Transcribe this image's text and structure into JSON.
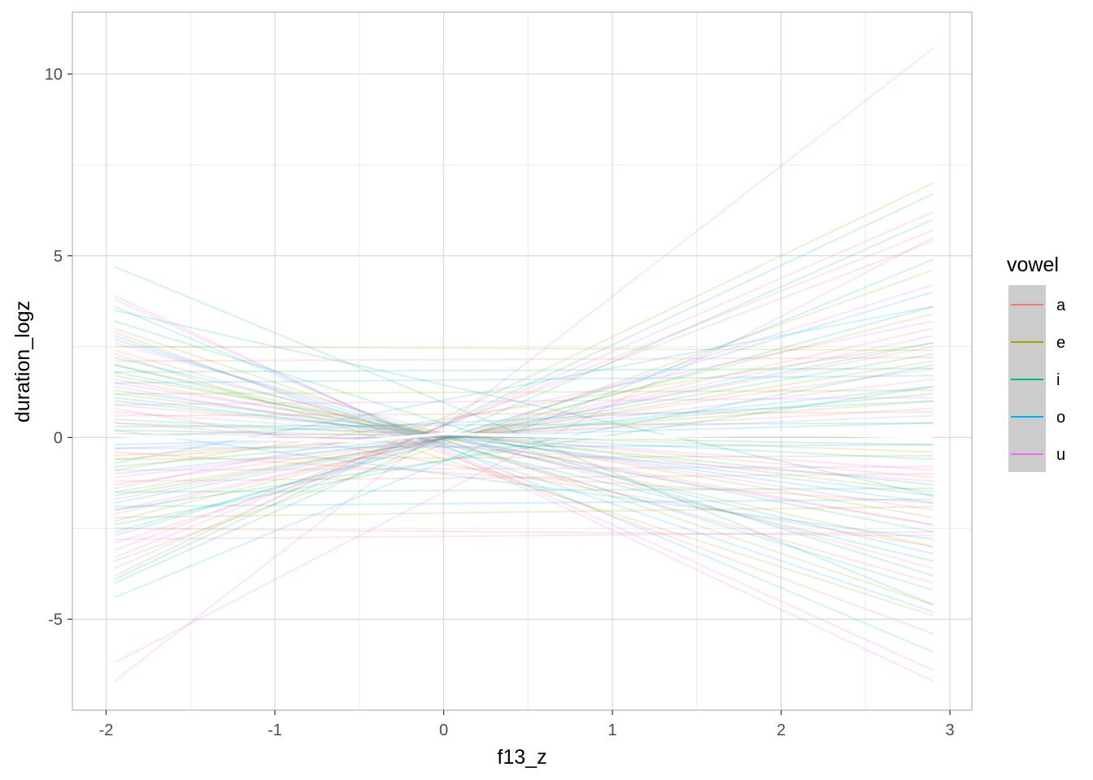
{
  "chart_data": {
    "type": "line",
    "title": "",
    "xlabel": "f13_z",
    "ylabel": "duration_logz",
    "xlim": [
      -2.2,
      3.13
    ],
    "ylim": [
      -7.5,
      11.7
    ],
    "x_ticks": [
      -2,
      -1,
      0,
      1,
      2,
      3
    ],
    "y_ticks": [
      -5,
      0,
      5,
      10
    ],
    "x_tick_labels": [
      "-2",
      "-1",
      "0",
      "1",
      "2",
      "3"
    ],
    "y_tick_labels": [
      "-5",
      "0",
      "5",
      "10"
    ],
    "grid": true,
    "legend_position": "right",
    "legend": {
      "title": "vowel",
      "entries": [
        {
          "name": "a",
          "color": "#F8766D"
        },
        {
          "name": "e",
          "color": "#A3A500"
        },
        {
          "name": "i",
          "color": "#00BF7D"
        },
        {
          "name": "o",
          "color": "#00B0F6"
        },
        {
          "name": "u",
          "color": "#E76BF3"
        }
      ]
    },
    "x_range": [
      -1.95,
      2.9
    ],
    "line_opacity": 0.18,
    "line_width": 2,
    "series": [
      {
        "vowel": "u",
        "y": [
          -6.7,
          10.7
        ]
      },
      {
        "vowel": "u",
        "y": [
          -6.2,
          5.5
        ]
      },
      {
        "vowel": "u",
        "y": [
          3.9,
          -6.7
        ]
      },
      {
        "vowel": "u",
        "y": [
          3.8,
          -6.4
        ]
      },
      {
        "vowel": "o",
        "y": [
          3.6,
          -5.9
        ]
      },
      {
        "vowel": "i",
        "y": [
          4.7,
          -4.6
        ]
      },
      {
        "vowel": "o",
        "y": [
          2.8,
          -4.8
        ]
      },
      {
        "vowel": "e",
        "y": [
          3.0,
          -4.6
        ]
      },
      {
        "vowel": "a",
        "y": [
          2.9,
          -5.4
        ]
      },
      {
        "vowel": "o",
        "y": [
          2.7,
          -4.2
        ]
      },
      {
        "vowel": "i",
        "y": [
          3.2,
          -3.8
        ]
      },
      {
        "vowel": "a",
        "y": [
          2.4,
          -4.0
        ]
      },
      {
        "vowel": "u",
        "y": [
          2.6,
          -3.6
        ]
      },
      {
        "vowel": "o",
        "y": [
          2.2,
          -3.2
        ]
      },
      {
        "vowel": "e",
        "y": [
          2.0,
          -3.0
        ]
      },
      {
        "vowel": "i",
        "y": [
          1.8,
          -2.6
        ]
      },
      {
        "vowel": "a",
        "y": [
          1.6,
          -2.4
        ]
      },
      {
        "vowel": "u",
        "y": [
          1.5,
          -2.0
        ]
      },
      {
        "vowel": "o",
        "y": [
          1.3,
          -1.8
        ]
      },
      {
        "vowel": "e",
        "y": [
          1.2,
          -1.5
        ]
      },
      {
        "vowel": "i",
        "y": [
          1.0,
          -1.3
        ]
      },
      {
        "vowel": "a",
        "y": [
          0.9,
          -1.1
        ]
      },
      {
        "vowel": "u",
        "y": [
          0.7,
          -0.9
        ]
      },
      {
        "vowel": "o",
        "y": [
          0.5,
          -0.6
        ]
      },
      {
        "vowel": "e",
        "y": [
          0.4,
          -0.4
        ]
      },
      {
        "vowel": "i",
        "y": [
          0.2,
          -0.2
        ]
      },
      {
        "vowel": "a",
        "y": [
          0.1,
          0.0
        ]
      },
      {
        "vowel": "e",
        "y": [
          -3.8,
          7.0
        ]
      },
      {
        "vowel": "i",
        "y": [
          -3.9,
          6.7
        ]
      },
      {
        "vowel": "u",
        "y": [
          -3.6,
          6.2
        ]
      },
      {
        "vowel": "i",
        "y": [
          -4.0,
          6.0
        ]
      },
      {
        "vowel": "u",
        "y": [
          -3.3,
          5.7
        ]
      },
      {
        "vowel": "a",
        "y": [
          -3.1,
          5.4
        ]
      },
      {
        "vowel": "o",
        "y": [
          -4.4,
          4.9
        ]
      },
      {
        "vowel": "e",
        "y": [
          -3.4,
          4.6
        ]
      },
      {
        "vowel": "u",
        "y": [
          -2.9,
          4.2
        ]
      },
      {
        "vowel": "o",
        "y": [
          -2.7,
          4.0
        ]
      },
      {
        "vowel": "i",
        "y": [
          -2.6,
          3.6
        ]
      },
      {
        "vowel": "e",
        "y": [
          -2.3,
          3.4
        ]
      },
      {
        "vowel": "a",
        "y": [
          -2.1,
          3.0
        ]
      },
      {
        "vowel": "u",
        "y": [
          -2.0,
          2.8
        ]
      },
      {
        "vowel": "o",
        "y": [
          -1.8,
          2.6
        ]
      },
      {
        "vowel": "i",
        "y": [
          -1.6,
          2.3
        ]
      },
      {
        "vowel": "e",
        "y": [
          -1.5,
          2.1
        ]
      },
      {
        "vowel": "a",
        "y": [
          -1.3,
          1.9
        ]
      },
      {
        "vowel": "u",
        "y": [
          -1.1,
          1.6
        ]
      },
      {
        "vowel": "o",
        "y": [
          -1.0,
          1.4
        ]
      },
      {
        "vowel": "i",
        "y": [
          -0.8,
          1.2
        ]
      },
      {
        "vowel": "e",
        "y": [
          -0.6,
          1.0
        ]
      },
      {
        "vowel": "a",
        "y": [
          -0.5,
          0.8
        ]
      },
      {
        "vowel": "u",
        "y": [
          -0.3,
          0.6
        ]
      },
      {
        "vowel": "o",
        "y": [
          -0.2,
          0.4
        ]
      },
      {
        "vowel": "a",
        "y": [
          -2.5,
          -2.7
        ]
      },
      {
        "vowel": "u",
        "y": [
          -2.8,
          -2.6
        ]
      },
      {
        "vowel": "e",
        "y": [
          -2.2,
          -1.9
        ]
      },
      {
        "vowel": "o",
        "y": [
          -1.9,
          -1.7
        ]
      },
      {
        "vowel": "i",
        "y": [
          -1.5,
          -1.4
        ]
      },
      {
        "vowel": "a",
        "y": [
          -1.2,
          -1.0
        ]
      },
      {
        "vowel": "u",
        "y": [
          -0.9,
          -0.8
        ]
      },
      {
        "vowel": "e",
        "y": [
          -0.6,
          -0.5
        ]
      },
      {
        "vowel": "o",
        "y": [
          -0.3,
          -0.2
        ]
      },
      {
        "vowel": "i",
        "y": [
          0.3,
          0.4
        ]
      },
      {
        "vowel": "a",
        "y": [
          0.6,
          0.7
        ]
      },
      {
        "vowel": "u",
        "y": [
          0.9,
          1.1
        ]
      },
      {
        "vowel": "e",
        "y": [
          1.2,
          1.3
        ]
      },
      {
        "vowel": "o",
        "y": [
          1.5,
          1.7
        ]
      },
      {
        "vowel": "i",
        "y": [
          1.8,
          1.9
        ]
      },
      {
        "vowel": "a",
        "y": [
          2.1,
          2.2
        ]
      },
      {
        "vowel": "e",
        "y": [
          2.5,
          2.4
        ]
      },
      {
        "vowel": "u",
        "y": [
          1.4,
          -2.4
        ]
      },
      {
        "vowel": "i",
        "y": [
          2.0,
          -3.4
        ]
      },
      {
        "vowel": "o",
        "y": [
          1.1,
          -1.6
        ]
      },
      {
        "vowel": "a",
        "y": [
          0.8,
          -3.0
        ]
      },
      {
        "vowel": "e",
        "y": [
          2.3,
          -4.9
        ]
      },
      {
        "vowel": "i",
        "y": [
          3.5,
          -1.6
        ]
      },
      {
        "vowel": "u",
        "y": [
          -1.4,
          3.2
        ]
      },
      {
        "vowel": "e",
        "y": [
          -0.9,
          2.6
        ]
      },
      {
        "vowel": "i",
        "y": [
          -2.4,
          2.0
        ]
      },
      {
        "vowel": "o",
        "y": [
          -0.7,
          3.6
        ]
      },
      {
        "vowel": "a",
        "y": [
          -1.7,
          2.5
        ]
      },
      {
        "vowel": "o",
        "y": [
          0.0,
          1.0
        ]
      },
      {
        "vowel": "u",
        "y": [
          0.4,
          -1.2
        ]
      },
      {
        "vowel": "i",
        "y": [
          -2.0,
          1.4
        ]
      },
      {
        "vowel": "e",
        "y": [
          1.7,
          -2.2
        ]
      },
      {
        "vowel": "a",
        "y": [
          -0.4,
          -1.8
        ]
      },
      {
        "vowel": "o",
        "y": [
          0.2,
          -2.8
        ]
      }
    ],
    "mean_line": {
      "color": "#ffffff",
      "x": [
        -1.95,
        -1.5,
        -1.0,
        -0.5,
        0.0,
        0.5,
        1.0,
        1.5,
        2.0,
        2.5,
        2.9
      ],
      "y": [
        0.05,
        0.0,
        -0.05,
        -0.1,
        0.1,
        0.05,
        0.0,
        0.05,
        0.1,
        0.05,
        0.0
      ]
    }
  }
}
